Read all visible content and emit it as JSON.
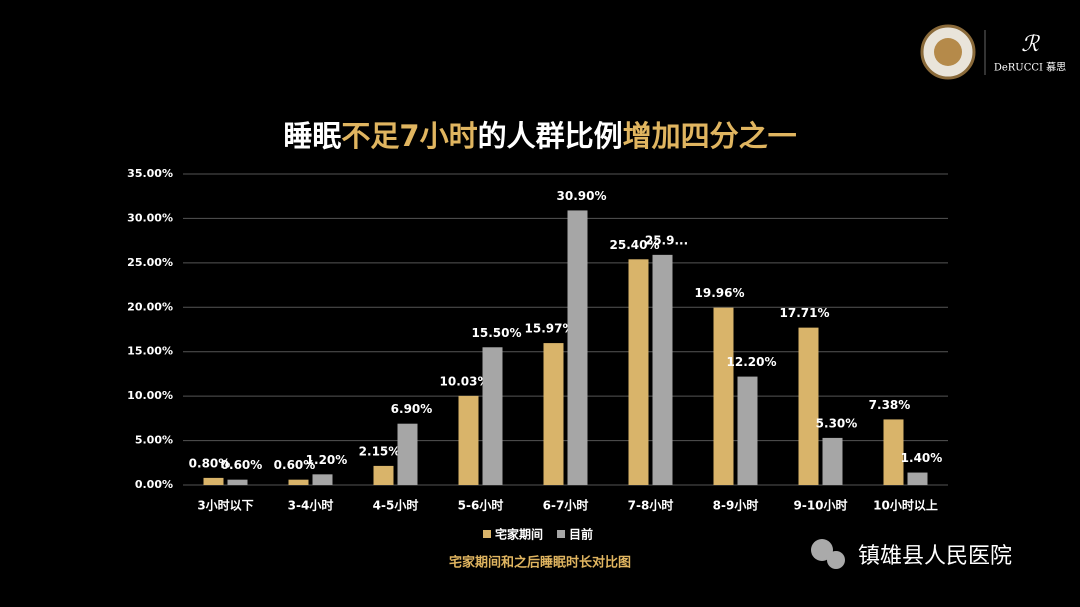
{
  "chart_data": {
    "type": "bar",
    "title_segments": [
      {
        "text": "睡眠",
        "color": "#ffffff"
      },
      {
        "text": "不足7小时",
        "color": "#e0b560"
      },
      {
        "text": "的人群比例",
        "color": "#ffffff"
      },
      {
        "text": "增加四分之一",
        "color": "#e0b560"
      }
    ],
    "caption": "宅家期间和之后睡眠时长对比图",
    "logo_text": "DeRUCCI 慕思",
    "source": "镇雄县人民医院",
    "categories": [
      "3小时以下",
      "3-4小时",
      "4-5小时",
      "5-6小时",
      "6-7小时",
      "7-8小时",
      "8-9小时",
      "9-10小时",
      "10小时以上"
    ],
    "series": [
      {
        "name": "宅家期间",
        "color": "#d9b46a",
        "values": [
          0.8,
          0.6,
          2.15,
          10.03,
          15.97,
          25.4,
          19.96,
          17.71,
          7.38
        ],
        "value_labels": [
          "0.80%",
          "0.60%",
          "2.15%",
          "10.03%",
          "15.97%",
          "25.40%",
          "19.96%",
          "17.71%",
          "7.38%"
        ]
      },
      {
        "name": "目前",
        "color": "#a6a6a6",
        "values": [
          0.6,
          1.2,
          6.9,
          15.5,
          30.9,
          25.9,
          12.2,
          5.3,
          1.4
        ],
        "value_labels": [
          "0.60%",
          "1.20%",
          "6.90%",
          "15.50%",
          "30.90%",
          "25.9...",
          "12.20%",
          "5.30%",
          "1.40%"
        ]
      }
    ],
    "ylim": [
      0,
      35
    ],
    "yticks": [
      {
        "value": 0,
        "label": "0.00%"
      },
      {
        "value": 5,
        "label": "5.00%"
      },
      {
        "value": 10,
        "label": "10.00%"
      },
      {
        "value": 15,
        "label": "15.00%"
      },
      {
        "value": 20,
        "label": "20.00%"
      },
      {
        "value": 25,
        "label": "25.00%"
      },
      {
        "value": 30,
        "label": "30.00%"
      },
      {
        "value": 35,
        "label": "35.00%"
      }
    ],
    "grid": true,
    "legend": "bottom"
  }
}
